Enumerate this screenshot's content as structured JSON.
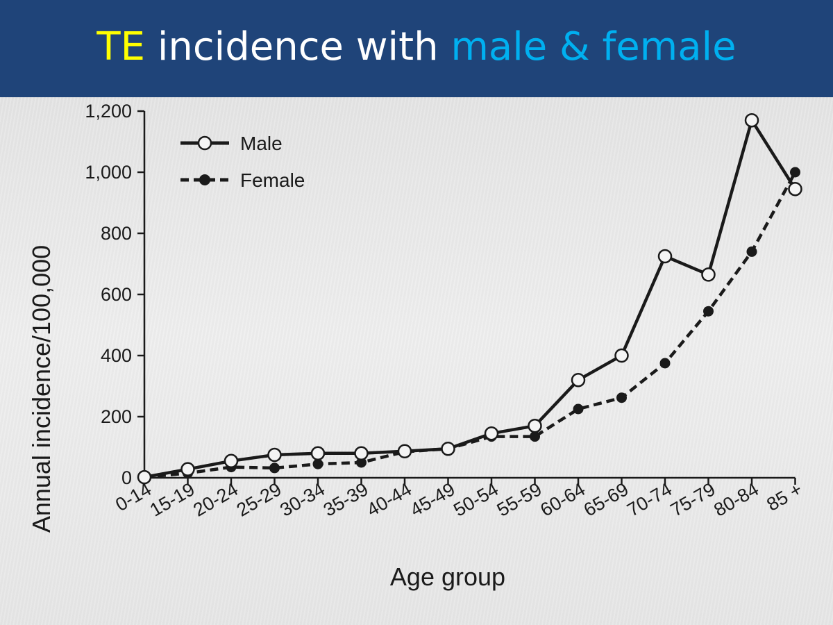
{
  "title": {
    "part1": "TE",
    "part2": " incidence with ",
    "part3": "male & female",
    "colors": {
      "part1": "#ffff00",
      "part2": "#ffffff",
      "part3": "#00b0f0"
    },
    "background": "#1f4479"
  },
  "chart_data": {
    "type": "line",
    "categories": [
      "0-14",
      "15-19",
      "20-24",
      "25-29",
      "30-34",
      "35-39",
      "40-44",
      "45-49",
      "50-54",
      "55-59",
      "60-64",
      "65-69",
      "70-74",
      "75-79",
      "80-84",
      "85 +"
    ],
    "series": [
      {
        "name": "Male",
        "style": "solid",
        "marker": "open-circle",
        "values": [
          2,
          28,
          55,
          75,
          80,
          80,
          87,
          95,
          145,
          170,
          320,
          400,
          725,
          665,
          1170,
          945
        ]
      },
      {
        "name": "Female",
        "style": "dashed",
        "marker": "filled-circle",
        "values": [
          2,
          15,
          35,
          32,
          45,
          50,
          85,
          95,
          135,
          135,
          225,
          262,
          375,
          545,
          740,
          1000
        ]
      }
    ],
    "xlabel": "Age group",
    "ylabel": "Annual incidence/100,000",
    "ylim": [
      0,
      1200
    ],
    "yticks": [
      0,
      200,
      400,
      600,
      800,
      1000,
      1200
    ],
    "ytick_labels": [
      "0",
      "200",
      "400",
      "600",
      "800",
      "1,000",
      "1,200"
    ],
    "grid": false,
    "legend": "top-left"
  }
}
